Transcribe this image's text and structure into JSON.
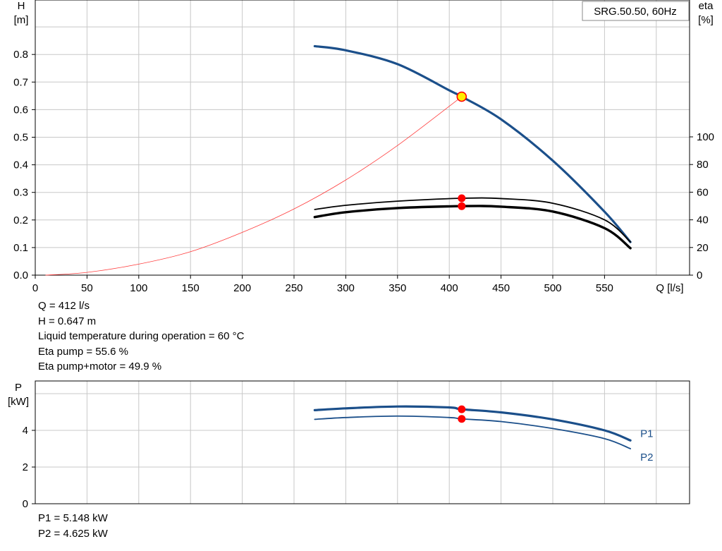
{
  "chart_data": [
    {
      "type": "line",
      "title": "SRG.50.50, 60Hz",
      "xlabel": "Q [l/s]",
      "ylabel_left": "H [m]",
      "ylabel_right": "eta [%]",
      "xlim": [
        0,
        600
      ],
      "ylim": [
        0,
        1.0
      ],
      "ylim_right": [
        0,
        200
      ],
      "x_ticks": [
        "0",
        "50",
        "100",
        "150",
        "200",
        "250",
        "300",
        "350",
        "400",
        "450",
        "500",
        "550"
      ],
      "y_ticks": [
        "0.0",
        "0.1",
        "0.2",
        "0.3",
        "0.4",
        "0.5",
        "0.6",
        "0.7",
        "0.8"
      ],
      "y_ticks_right": [
        "0",
        "20",
        "40",
        "60",
        "80",
        "100"
      ],
      "grid": true,
      "series": [
        {
          "key": "head",
          "axis": "left",
          "color": "#1b4f8a",
          "points": [
            [
              270,
              0.83
            ],
            [
              300,
              0.815
            ],
            [
              350,
              0.765
            ],
            [
              400,
              0.67
            ],
            [
              412,
              0.647
            ],
            [
              450,
              0.565
            ],
            [
              500,
              0.415
            ],
            [
              550,
              0.23
            ],
            [
              575,
              0.12
            ]
          ]
        },
        {
          "key": "system",
          "axis": "left",
          "color": "#ff3b3b",
          "points": [
            [
              10,
              0.0
            ],
            [
              50,
              0.01
            ],
            [
              100,
              0.04
            ],
            [
              150,
              0.085
            ],
            [
              200,
              0.155
            ],
            [
              250,
              0.24
            ],
            [
              300,
              0.345
            ],
            [
              350,
              0.47
            ],
            [
              412,
              0.647
            ]
          ]
        },
        {
          "key": "eta_pump",
          "axis": "right",
          "color": "#000000",
          "points": [
            [
              270,
              47.5
            ],
            [
              300,
              50.5
            ],
            [
              350,
              53.5
            ],
            [
              412,
              55.6
            ],
            [
              450,
              55.4
            ],
            [
              500,
              52
            ],
            [
              550,
              40
            ],
            [
              575,
              24
            ]
          ]
        },
        {
          "key": "eta_pump_motor",
          "axis": "right",
          "color": "#000000",
          "points": [
            [
              270,
              42
            ],
            [
              300,
              45.5
            ],
            [
              350,
              48.5
            ],
            [
              412,
              49.9
            ],
            [
              450,
              49.5
            ],
            [
              500,
              46
            ],
            [
              550,
              34
            ],
            [
              575,
              19.5
            ]
          ]
        }
      ],
      "duty_point": {
        "q": 412,
        "h": 0.647,
        "eta_pump": 55.6,
        "eta_pump_motor": 49.9
      },
      "annotations": [
        "Q = 412 l/s",
        "H = 0.647 m",
        "Liquid temperature during operation = 60 °C",
        "Eta pump = 55.6 %",
        "Eta pump+motor = 49.9 %"
      ]
    },
    {
      "type": "line",
      "ylabel": "P [kW]",
      "xlim": [
        0,
        600
      ],
      "ylim": [
        0,
        7
      ],
      "y_ticks": [
        "0",
        "2",
        "4"
      ],
      "grid": true,
      "series": [
        {
          "name": "P1",
          "key": "p1",
          "color": "#1b4f8a",
          "points": [
            [
              270,
              5.1
            ],
            [
              300,
              5.2
            ],
            [
              350,
              5.3
            ],
            [
              400,
              5.25
            ],
            [
              412,
              5.148
            ],
            [
              450,
              4.98
            ],
            [
              500,
              4.6
            ],
            [
              550,
              4.0
            ],
            [
              575,
              3.45
            ]
          ]
        },
        {
          "name": "P2",
          "key": "p2",
          "color": "#1b4f8a",
          "points": [
            [
              270,
              4.6
            ],
            [
              300,
              4.7
            ],
            [
              350,
              4.78
            ],
            [
              400,
              4.7
            ],
            [
              412,
              4.625
            ],
            [
              450,
              4.48
            ],
            [
              500,
              4.1
            ],
            [
              550,
              3.55
            ],
            [
              575,
              3.0
            ]
          ]
        }
      ],
      "duty_point": {
        "q": 412,
        "p1": 5.148,
        "p2": 4.625
      },
      "annotations": [
        "P1 = 5.148 kW",
        "P2 = 4.625 kW"
      ]
    }
  ],
  "colors": {
    "grid": "#c8c8c8",
    "head_curve": "#1b4f8a",
    "system_curve": "#ff3b3b",
    "eta_curves": "#000000",
    "duty_marker": "#ff0000",
    "operating_point_fill": "#ffee00"
  }
}
